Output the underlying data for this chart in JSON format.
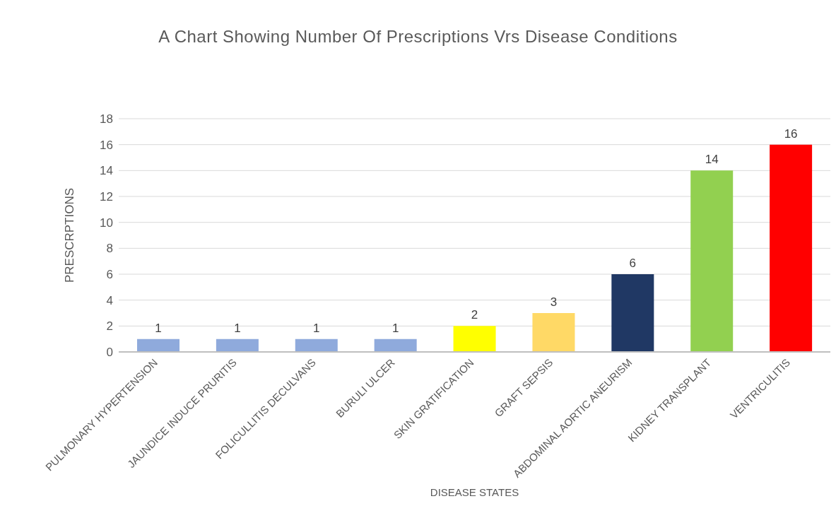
{
  "chart_data": {
    "type": "bar",
    "title": "A Chart Showing Number Of Prescriptions Vrs Disease Conditions",
    "xlabel": "DISEASE STATES",
    "ylabel": "PRESCRPTIONS",
    "categories": [
      "PULMONARY HYPERTENSION",
      "JAUNDICE INDUCE PRURITIS",
      "FOLICULLITIS DECULVANS",
      "BURULI ULCER",
      "SKIN GRATIFICATION",
      "GRAFT SEPSIS",
      "ABDOMINAL AORTIC ANEURISM",
      "KIDNEY TRANSPLANT",
      "VENTRICULITIS"
    ],
    "values": [
      1,
      1,
      1,
      1,
      2,
      3,
      6,
      14,
      16
    ],
    "colors": [
      "#8faadc",
      "#8faadc",
      "#8faadc",
      "#8faadc",
      "#ffff00",
      "#ffd966",
      "#203864",
      "#92d050",
      "#ff0000"
    ],
    "ylim": [
      0,
      18
    ],
    "yticks": [
      0,
      2,
      4,
      6,
      8,
      10,
      12,
      14,
      16,
      18
    ],
    "grid": "y",
    "data_labels": true
  }
}
